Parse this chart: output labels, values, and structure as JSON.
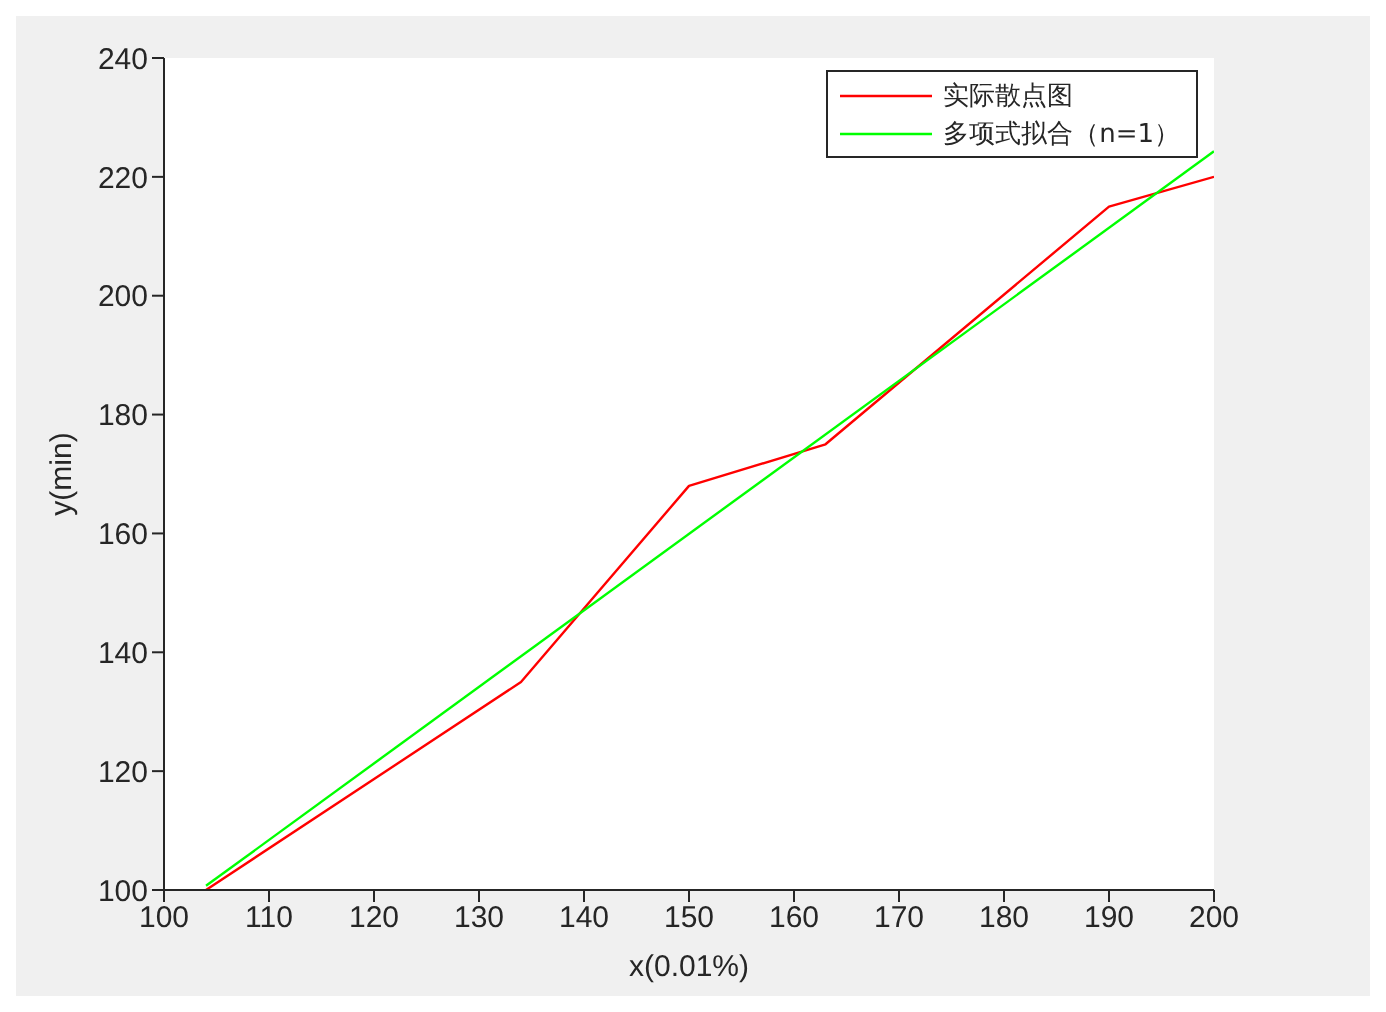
{
  "chart_data": {
    "type": "line",
    "xlabel": "x(0.01%)",
    "ylabel": "y(min)",
    "xlim": [
      100,
      200
    ],
    "xticks": [
      100,
      110,
      120,
      130,
      140,
      150,
      160,
      170,
      180,
      190,
      200
    ],
    "ylim": [
      100,
      240
    ],
    "yticks": [
      100,
      120,
      140,
      160,
      180,
      200,
      220,
      240
    ],
    "grid": false,
    "legend": "top right",
    "marker": "none",
    "line_style": "solid",
    "series": [
      {
        "name": "实际散点图",
        "color": "#ff0000",
        "x": [
          104,
          134,
          150,
          163,
          190,
          200
        ],
        "values": [
          100,
          135,
          168,
          175,
          215,
          220
        ]
      },
      {
        "name": "多项式拟合（n=1）",
        "color": "#00ff00",
        "x": [
          104,
          200
        ],
        "values": [
          100.7,
          224.3
        ]
      }
    ]
  }
}
